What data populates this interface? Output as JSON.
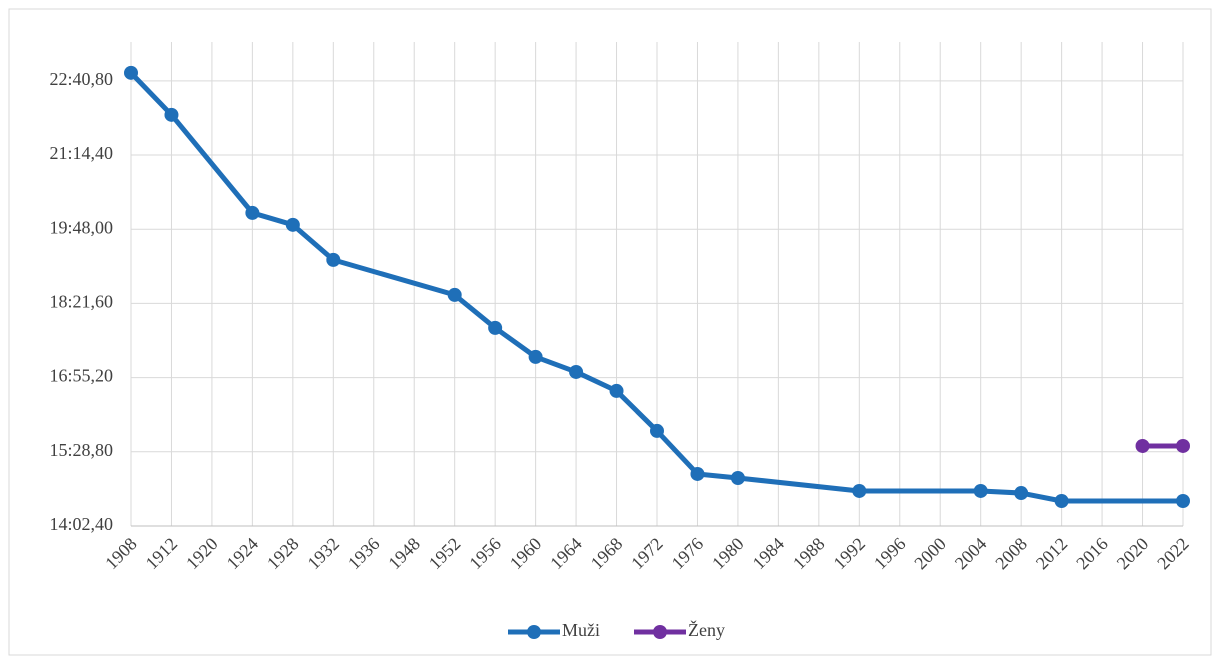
{
  "chart_data": {
    "type": "line",
    "categories": [
      "1908",
      "1912",
      "1920",
      "1924",
      "1928",
      "1932",
      "1936",
      "1948",
      "1952",
      "1956",
      "1960",
      "1964",
      "1968",
      "1972",
      "1976",
      "1980",
      "1984",
      "1988",
      "1992",
      "1996",
      "2000",
      "2004",
      "2008",
      "2012",
      "2016",
      "2020",
      "2022"
    ],
    "series": [
      {
        "name": "Muži",
        "color": "#1f6fb8",
        "values": [
          1370.1,
          1321.2,
          null,
          1207.0,
          1193.1,
          1152.3,
          null,
          null,
          1111.5,
          1073.1,
          1039.3,
          1021.8,
          999.7,
          953.1,
          903.0,
          898.3,
          null,
          null,
          883.2,
          null,
          null,
          883.2,
          880.8,
          871.5,
          null,
          null,
          871.5
        ]
      },
      {
        "name": "Ženy",
        "color": "#7030a0",
        "values": [
          null,
          null,
          null,
          null,
          null,
          null,
          null,
          null,
          null,
          null,
          null,
          null,
          null,
          null,
          null,
          null,
          null,
          null,
          null,
          null,
          null,
          null,
          null,
          null,
          null,
          935.6,
          935.6
        ]
      }
    ],
    "connect_gaps": true,
    "ylim": [
      842.4,
      1406
    ],
    "yticks": [
      {
        "value": 842.4,
        "label": "14:02,40"
      },
      {
        "value": 928.8,
        "label": "15:28,80"
      },
      {
        "value": 1015.2,
        "label": "16:55,20"
      },
      {
        "value": 1101.6,
        "label": "18:21,60"
      },
      {
        "value": 1188,
        "label": "19:48,00"
      },
      {
        "value": 1274.4,
        "label": "21:14,40"
      },
      {
        "value": 1360.8,
        "label": "22:40,80"
      }
    ],
    "grid": true,
    "legend": "bottom"
  }
}
